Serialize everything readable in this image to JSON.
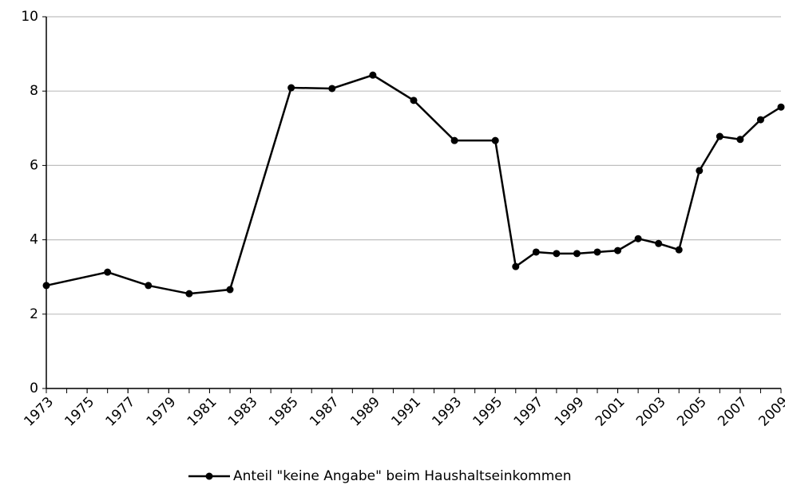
{
  "chart_data": {
    "type": "line",
    "x": [
      1973,
      1976,
      1978,
      1980,
      1982,
      1985,
      1987,
      1989,
      1991,
      1993,
      1995,
      1996,
      1997,
      1998,
      1999,
      2000,
      2001,
      2002,
      2003,
      2004,
      2005,
      2006,
      2007,
      2008,
      2009
    ],
    "series": [
      {
        "name": "Anteil \"keine Angabe\" beim Haushaltseinkommen",
        "color": "#000000",
        "values": [
          2.77,
          3.13,
          2.77,
          2.55,
          2.66,
          8.09,
          8.07,
          8.43,
          7.75,
          6.67,
          6.67,
          3.28,
          3.67,
          3.63,
          3.63,
          3.67,
          3.71,
          4.03,
          3.9,
          3.73,
          5.86,
          6.78,
          6.7,
          7.23,
          7.57
        ]
      }
    ],
    "xlim": [
      1973,
      2009
    ],
    "xticks": [
      1973,
      1975,
      1977,
      1979,
      1981,
      1983,
      1985,
      1987,
      1989,
      1991,
      1993,
      1995,
      1997,
      1999,
      2001,
      2003,
      2005,
      2007,
      2009
    ],
    "ylim": [
      0,
      10
    ],
    "yticks": [
      0,
      2,
      4,
      6,
      8,
      10
    ],
    "grid": true,
    "legend": "bottom"
  }
}
